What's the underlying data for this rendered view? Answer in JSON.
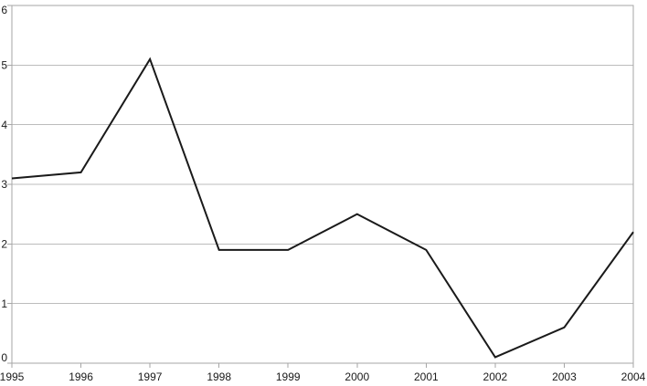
{
  "chart_data": {
    "type": "line",
    "x": [
      "1995",
      "1996",
      "1997",
      "1998",
      "1999",
      "2000",
      "2001",
      "2002",
      "2003",
      "2004"
    ],
    "values": [
      3.1,
      3.2,
      5.1,
      1.9,
      1.9,
      2.5,
      1.9,
      0.1,
      0.6,
      2.2
    ],
    "ylim": [
      0,
      6
    ],
    "yticks": [
      "0",
      "1",
      "2",
      "3",
      "4",
      "5",
      "6"
    ],
    "grid": "horizontal",
    "legend": "none",
    "colors": {
      "line": "#1a1a1a",
      "grid": "#bcbcbc",
      "axis": "#a6a6a6",
      "label": "#1a1a1a",
      "background": "#ffffff"
    }
  }
}
